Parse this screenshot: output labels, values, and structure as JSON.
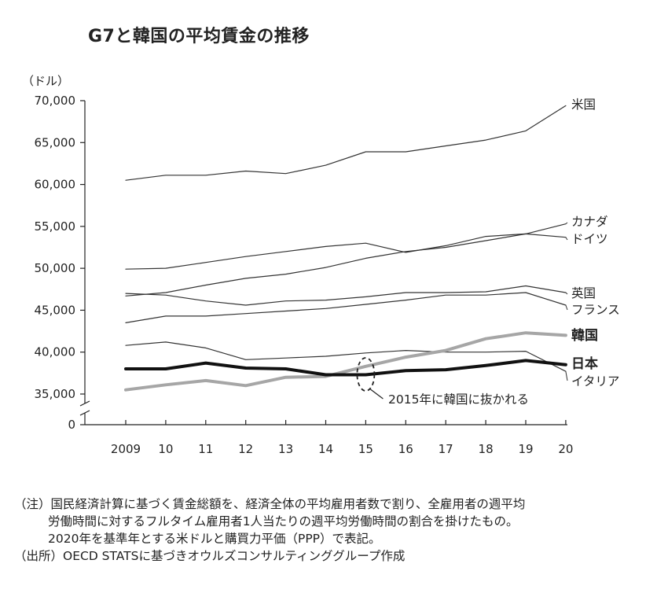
{
  "title": "G7と韓国の平均賃金の推移",
  "chart_data": {
    "type": "line",
    "ylabel": "（ドル）",
    "y_ticks": [
      "70,000",
      "65,000",
      "60,000",
      "55,000",
      "50,000",
      "45,000",
      "40,000",
      "35,000"
    ],
    "y_zero_label": "0",
    "ylim": [
      35000,
      70000
    ],
    "axis_break": true,
    "categories": [
      "2009",
      "10",
      "11",
      "12",
      "13",
      "14",
      "15",
      "16",
      "17",
      "18",
      "19",
      "20"
    ],
    "series": [
      {
        "name": "米国",
        "values": [
          60500,
          61100,
          61100,
          61600,
          61300,
          62300,
          63900,
          63900,
          64600,
          65300,
          66400,
          69400
        ],
        "color": "#333333",
        "width": 1.2,
        "bold": false
      },
      {
        "name": "カナダ",
        "values": [
          46700,
          47100,
          48000,
          48800,
          49300,
          50100,
          51200,
          52000,
          52500,
          53300,
          54100,
          55300
        ],
        "color": "#333333",
        "width": 1.2,
        "bold": false
      },
      {
        "name": "ドイツ",
        "values": [
          49900,
          50000,
          50700,
          51400,
          52000,
          52600,
          53000,
          51900,
          52700,
          53800,
          54100,
          53700
        ],
        "color": "#333333",
        "width": 1.2,
        "bold": false
      },
      {
        "name": "英国",
        "values": [
          47000,
          46800,
          46100,
          45600,
          46100,
          46200,
          46600,
          47100,
          47100,
          47200,
          47900,
          47100
        ],
        "color": "#333333",
        "width": 1.2,
        "bold": false
      },
      {
        "name": "フランス",
        "values": [
          43500,
          44300,
          44300,
          44600,
          44900,
          45200,
          45700,
          46200,
          46800,
          46800,
          47100,
          45600
        ],
        "color": "#333333",
        "width": 1.2,
        "bold": false
      },
      {
        "name": "韓国",
        "values": [
          35500,
          36100,
          36600,
          36000,
          37000,
          37100,
          38300,
          39400,
          40200,
          41600,
          42300,
          42000
        ],
        "color": "#a6a6a6",
        "width": 4,
        "bold": true
      },
      {
        "name": "日本",
        "values": [
          38000,
          38000,
          38700,
          38100,
          38000,
          37300,
          37300,
          37800,
          37900,
          38400,
          39000,
          38500
        ],
        "color": "#111111",
        "width": 4,
        "bold": true
      },
      {
        "name": "イタリア",
        "values": [
          40800,
          41200,
          40500,
          39100,
          39300,
          39500,
          39900,
          40200,
          40000,
          40000,
          40100,
          37700
        ],
        "color": "#333333",
        "width": 1.2,
        "bold": false
      }
    ],
    "annotation": {
      "text": "2015年に韓国に抜かれる",
      "at_category": "15"
    }
  },
  "notes": {
    "note_prefix": "（注）",
    "note_line1": "国民経済計算に基づく賃金総額を、経済全体の平均雇用者数で割り、全雇用者の週平均",
    "note_line2": "労働時間に対するフルタイム雇用者1人当たりの週平均労働時間の割合を掛けたもの。",
    "note_line3": "2020年を基準年とする米ドルと購買力平価（PPP）で表記。",
    "source": "（出所）OECD STATSに基づきオウルズコンサルティンググループ作成"
  }
}
